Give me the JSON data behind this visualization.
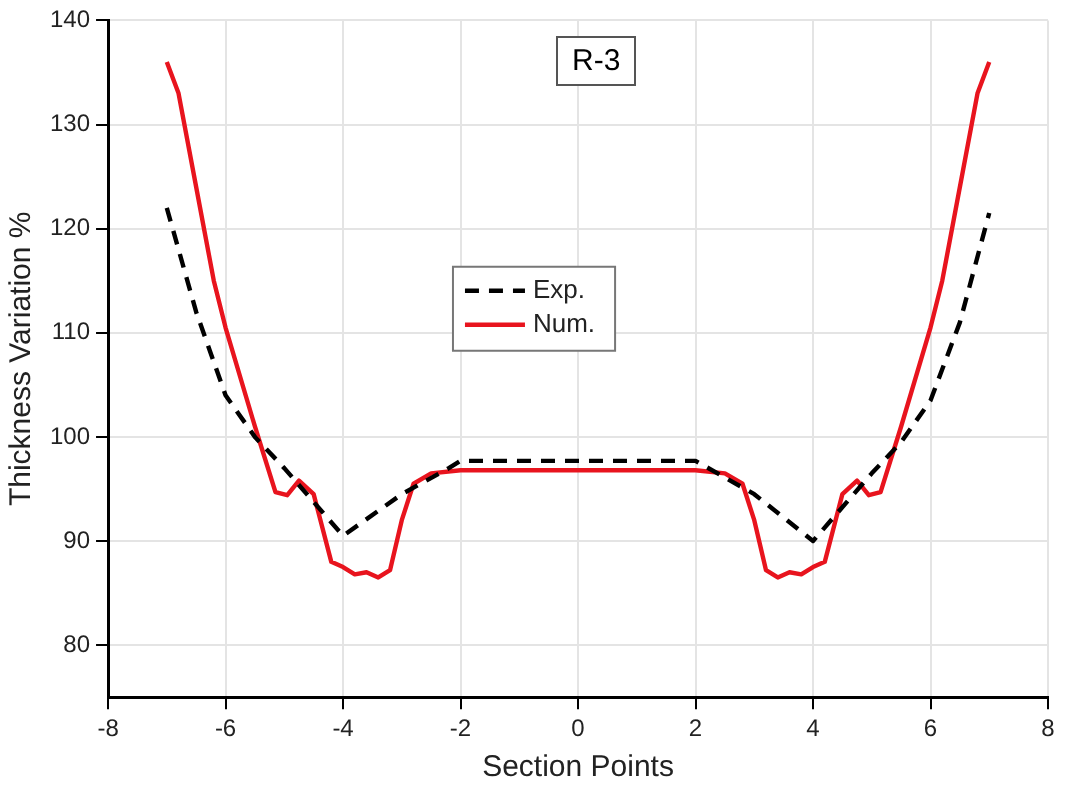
{
  "chart_data": {
    "type": "line",
    "title": "R-3",
    "xlabel": "Section Points",
    "ylabel": "Thickness Variation %",
    "xlim": [
      -8,
      8
    ],
    "xticks": [
      -8,
      -6,
      -4,
      -2,
      0,
      2,
      4,
      6,
      8
    ],
    "ylim": [
      75,
      140
    ],
    "yticks": [
      80,
      90,
      100,
      110,
      120,
      130,
      140
    ],
    "grid": true,
    "legend": "center",
    "marker": "none",
    "series": [
      {
        "name": "Exp.",
        "color": "#000000",
        "line_style": "dashed",
        "x": [
          -7,
          -6.5,
          -6,
          -5.5,
          -5,
          -4,
          -3,
          -2.2,
          -2,
          2,
          3,
          4,
          5,
          5.5,
          6,
          6.5,
          7
        ],
        "values": [
          122,
          112,
          104,
          100,
          97,
          90.5,
          94.5,
          97,
          97.7,
          97.7,
          94.5,
          90,
          96.5,
          99.5,
          103.5,
          111,
          121.5
        ]
      },
      {
        "name": "Num.",
        "color": "#e8141e",
        "line_style": "solid",
        "x": [
          -7,
          -6.8,
          -6.5,
          -6.2,
          -6,
          -5.5,
          -5.15,
          -4.95,
          -4.75,
          -4.5,
          -4.2,
          -4,
          -3.8,
          -3.6,
          -3.4,
          -3.2,
          -3,
          -2.8,
          -2.5,
          -2,
          2,
          2.5,
          2.8,
          3,
          3.2,
          3.4,
          3.6,
          3.8,
          4,
          4.2,
          4.5,
          4.75,
          4.95,
          5.15,
          5.5,
          6,
          6.2,
          6.5,
          6.8,
          7
        ],
        "values": [
          136,
          133,
          124,
          115,
          110.5,
          101,
          94.7,
          94.4,
          95.8,
          94.5,
          88,
          87.5,
          86.8,
          87,
          86.5,
          87.2,
          92,
          95.5,
          96.5,
          96.8,
          96.8,
          96.5,
          95.5,
          92,
          87.2,
          86.5,
          87,
          86.8,
          87.5,
          88,
          94.5,
          95.8,
          94.4,
          94.7,
          101,
          110.5,
          115,
          124,
          133,
          136
        ]
      }
    ]
  }
}
